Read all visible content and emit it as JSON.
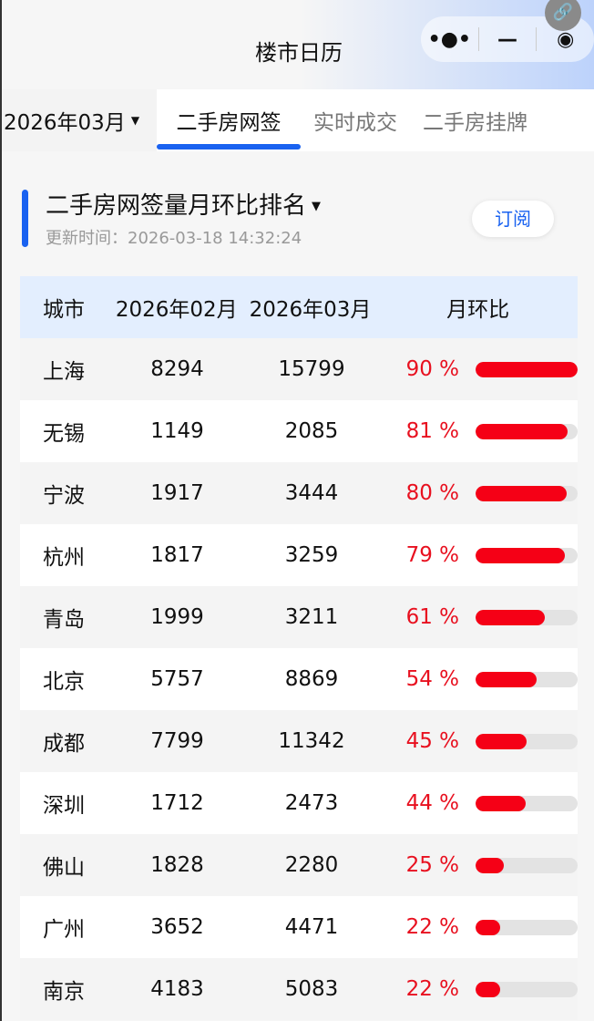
{
  "header": {
    "title": "楼市日历",
    "capsule": {
      "more": "•●•",
      "minimize": "—",
      "close": "◉"
    },
    "link_icon": "link-icon"
  },
  "tabs": {
    "month": "2026年03月",
    "items": [
      "二手房网签",
      "实时成交",
      "二手房挂牌"
    ],
    "active": 0
  },
  "section": {
    "title": "二手房网签量月环比排名",
    "updated": "更新时间：2026-03-18 14:32:24",
    "subscribe": "订阅"
  },
  "table": {
    "headers": [
      "城市",
      "2026年02月",
      "2026年03月",
      "月环比"
    ],
    "rows": [
      {
        "city": "上海",
        "feb": "8294",
        "mar": "15799",
        "mom": "90 %",
        "pct": 90
      },
      {
        "city": "无锡",
        "feb": "1149",
        "mar": "2085",
        "mom": "81 %",
        "pct": 81
      },
      {
        "city": "宁波",
        "feb": "1917",
        "mar": "3444",
        "mom": "80 %",
        "pct": 80
      },
      {
        "city": "杭州",
        "feb": "1817",
        "mar": "3259",
        "mom": "79 %",
        "pct": 79
      },
      {
        "city": "青岛",
        "feb": "1999",
        "mar": "3211",
        "mom": "61 %",
        "pct": 61
      },
      {
        "city": "北京",
        "feb": "5757",
        "mar": "8869",
        "mom": "54 %",
        "pct": 54
      },
      {
        "city": "成都",
        "feb": "7799",
        "mar": "11342",
        "mom": "45 %",
        "pct": 45
      },
      {
        "city": "深圳",
        "feb": "1712",
        "mar": "2473",
        "mom": "44 %",
        "pct": 44
      },
      {
        "city": "佛山",
        "feb": "1828",
        "mar": "2280",
        "mom": "25 %",
        "pct": 25
      },
      {
        "city": "广州",
        "feb": "3652",
        "mar": "4471",
        "mom": "22 %",
        "pct": 22
      },
      {
        "city": "南京",
        "feb": "4183",
        "mar": "5083",
        "mom": "22 %",
        "pct": 22
      }
    ]
  },
  "colors": {
    "accent": "#1a62f0",
    "positive": "#f50016",
    "header_bg": "#e3eefe"
  }
}
